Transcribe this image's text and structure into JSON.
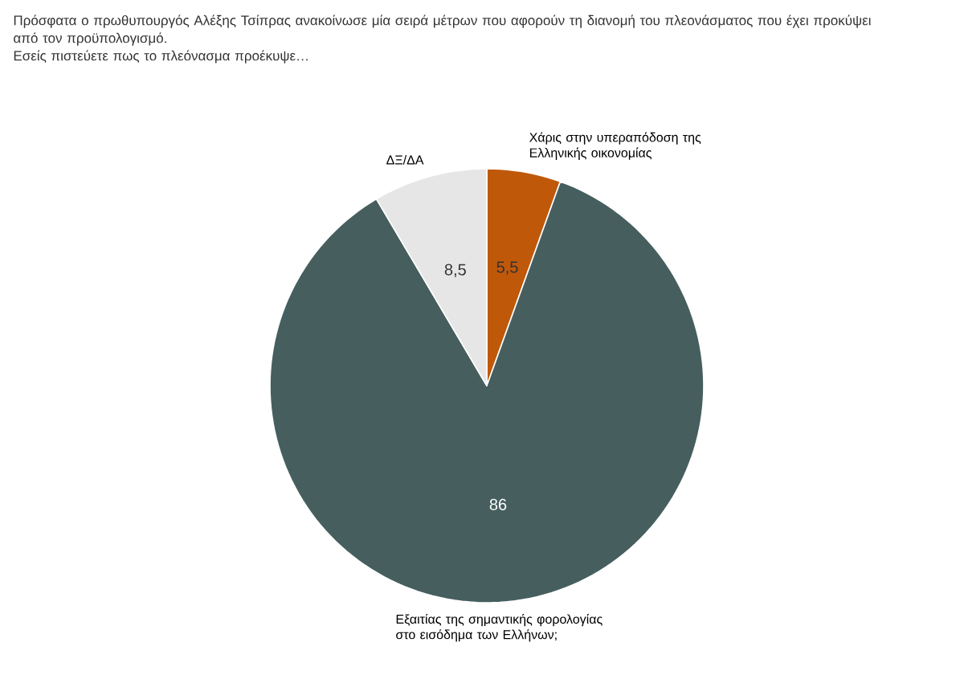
{
  "chart_data": {
    "type": "pie",
    "title": "Πρόσφατα ο πρωθυπουργός Αλέξης Τσίπρας ανακοίνωσε μία σειρά μέτρων που αφορούν τη διανομή του πλεονάσματος που έχει προκύψει από τον προϋπολογισμό.",
    "subtitle": "Εσείς πιστεύετε πως το πλεόνασμα προέκυψε…",
    "categories": [
      "Χάρις στην υπεραπόδοση της Ελληνικής οικονομίας",
      "Εξαιτίας της σημαντικής φορολογίας στο εισόδημα των Ελλήνων;",
      "ΔΞ/ΔΑ"
    ],
    "values": [
      5.5,
      86,
      8.5
    ],
    "value_labels": [
      "5,5",
      "86",
      "8,5"
    ],
    "colors": [
      "#c0580a",
      "#465e5e",
      "#e6e6e6"
    ]
  }
}
